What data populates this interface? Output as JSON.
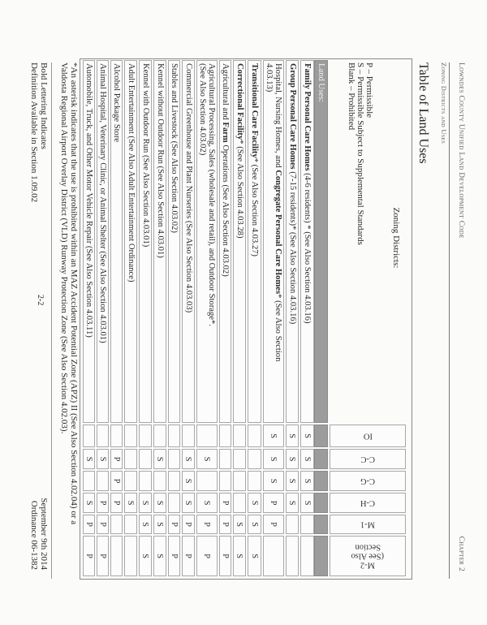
{
  "header": {
    "code_title": "Lowndes County Unified Land Development Code",
    "section": "Zoning Districts and Uses",
    "chapter": "Chapter 2"
  },
  "title": "Table of Land Uses",
  "legend": {
    "p": "P – Permissible",
    "s": "S – Permissible Subject to Supplemental Standards",
    "blank": "Blank – Prohibited"
  },
  "table": {
    "zoning_label": "Zoning Districts:",
    "land_uses_label": "Land Uses:",
    "columns": [
      "IO",
      "C-C",
      "C-G",
      "C-H",
      "M-1",
      "M-2\n(See Also\nSection"
    ],
    "rows": [
      {
        "parts": [
          {
            "t": "Family Personal Care Homes",
            "b": true
          },
          {
            "t": " (4-6 residents) * (See Also Section 4.03.16)"
          }
        ],
        "values": [
          "S",
          "S",
          "S",
          "S",
          "",
          ""
        ]
      },
      {
        "parts": [
          {
            "t": "Group Personal Care Homes",
            "b": true
          },
          {
            "t": " (7-15 residents)* (See Also Section 4.03.16)"
          }
        ],
        "values": [
          "S",
          "S",
          "S",
          "S",
          "",
          ""
        ]
      },
      {
        "parts": [
          {
            "t": "Hospital, Nursing Homes, and "
          },
          {
            "t": "Congregate Personal Care Homes",
            "b": true
          },
          {
            "t": "* (See Also Section\n4.03.13)"
          }
        ],
        "values": [
          "S",
          "S",
          "S",
          "P",
          "P",
          ""
        ]
      },
      {
        "parts": [
          {
            "t": "Transitional Care Facility",
            "b": true
          },
          {
            "t": "* (See Also Section 4.03.27)"
          }
        ],
        "values": [
          "",
          "",
          "",
          "S",
          "S",
          "S"
        ]
      },
      {
        "parts": [
          {
            "t": "Correctional Facility",
            "b": true
          },
          {
            "t": "* (See Also Section 4.03.28)"
          }
        ],
        "values": [
          "",
          "",
          "",
          "",
          "S",
          "S"
        ]
      },
      {
        "parts": [
          {
            "t": "Agricultural and "
          },
          {
            "t": "Farm",
            "b": true
          },
          {
            "t": " Operations (See Also Section 4.03.02)"
          }
        ],
        "values": [
          "",
          "",
          "",
          "P",
          "P",
          "P"
        ]
      },
      {
        "parts": [
          {
            "t": "Agricultural Processing, Sales (wholesale and retail), and Outdoor Storage*.\n(See Also Section 4.03.02)"
          }
        ],
        "values": [
          "",
          "S",
          "",
          "S",
          "P",
          "P"
        ]
      },
      {
        "parts": [
          {
            "t": "Commercial Greenhouse and Plant Nurseries (See Also Section 4.03.03)"
          }
        ],
        "values": [
          "",
          "S",
          "S",
          "S",
          "P",
          "P"
        ]
      },
      {
        "parts": [
          {
            "t": "Stables and Livestock (See Also Section 4.03.02)"
          }
        ],
        "values": [
          "",
          "",
          "",
          "",
          "P",
          "P"
        ]
      },
      {
        "parts": [
          {
            "t": "Kennel without Outdoor Run (See Also Section 4.03.01)"
          }
        ],
        "values": [
          "",
          "S",
          "",
          "S",
          "S",
          "S"
        ]
      },
      {
        "parts": [
          {
            "t": "Kennel with Outdoor Run (See Also Section 4.03.01)"
          }
        ],
        "values": [
          "",
          "",
          "",
          "S",
          "S",
          "S"
        ]
      },
      {
        "parts": [
          {
            "t": "Adult Entertainment (See Also Adult Entertainment Ordinance)"
          }
        ],
        "values": [
          "",
          "",
          "",
          "S",
          "",
          ""
        ]
      },
      {
        "parts": [
          {
            "t": "Alcohol Package Store"
          }
        ],
        "values": [
          "",
          "P",
          "P",
          "P",
          "",
          ""
        ]
      },
      {
        "parts": [
          {
            "t": "Animal Hospital, Veterinary Clinic, or Animal Shelter (See Also Section 4.03.01)"
          }
        ],
        "values": [
          "",
          "S",
          "",
          "P",
          "P",
          "P"
        ]
      },
      {
        "parts": [
          {
            "t": "Automobile, Truck, and Other Motor Vehicle Repair (See Also Section 4.03.11)"
          }
        ],
        "values": [
          "",
          "S",
          "",
          "S",
          "P",
          "P"
        ]
      }
    ]
  },
  "footnote": {
    "line1": "*An asterisk indicates that the use is prohibited within an MAZ Accident Potential Zone (APZ) II (See Also Section 4.02.04) or a",
    "line2": "Valdosta Regional Airport Overlay District (VLD) Runway Protection Zone (See Also Section 4.02.03)."
  },
  "footer": {
    "bold_note_1": "Bold Lettering Indicates",
    "bold_note_2": "Definition Available in Section 1.09.02",
    "page_number": "2-2",
    "date": "September 9th 2014",
    "ordinance": "Ordinance 06-1382"
  },
  "colors": {
    "band": "#9c9c9c",
    "border": "#a8a8a8"
  }
}
